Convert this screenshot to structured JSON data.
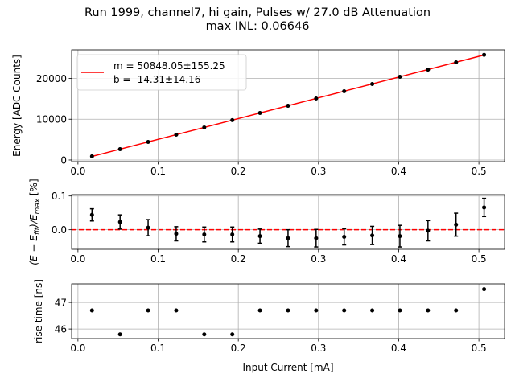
{
  "title": {
    "line1": "Run 1999, channel7, hi gain, Pulses w/ 27.0 dB Attenuation",
    "line2": "max INL: 0.06646"
  },
  "chart_data": [
    {
      "type": "scatter",
      "name": "energy-vs-current",
      "x": [
        0.0175,
        0.0525,
        0.0875,
        0.1225,
        0.1575,
        0.1925,
        0.227,
        0.262,
        0.297,
        0.332,
        0.367,
        0.4015,
        0.4365,
        0.4715,
        0.5065
      ],
      "values": [
        900,
        2650,
        4430,
        6200,
        7990,
        9780,
        11520,
        13290,
        15080,
        16840,
        18620,
        20400,
        22150,
        23940,
        25780
      ],
      "ylabel": "Energy [ADC Counts]",
      "xlim": [
        -0.0079,
        0.532
      ],
      "ylim": [
        -400,
        27000
      ],
      "xticks": [
        "0.0",
        "0.1",
        "0.2",
        "0.3",
        "0.4",
        "0.5"
      ],
      "xtick_values": [
        0,
        0.1,
        0.2,
        0.3,
        0.4,
        0.5
      ],
      "yticks": [
        "0",
        "10000",
        "20000"
      ],
      "ytick_values": [
        0,
        10000,
        20000
      ],
      "fit": {
        "x_start": 0.0175,
        "x_end": 0.5065,
        "m": 50848.05,
        "b": -14.31,
        "color": "#ff0000"
      },
      "legend": {
        "m_text": "m = 50848.05±155.25",
        "b_text": "b = -14.31±14.16",
        "position": "upper-left"
      },
      "grid": true
    },
    {
      "type": "scatter",
      "name": "residuals",
      "x": [
        0.0175,
        0.0525,
        0.0875,
        0.1225,
        0.1575,
        0.1925,
        0.227,
        0.262,
        0.297,
        0.332,
        0.367,
        0.4015,
        0.4365,
        0.4715,
        0.5065
      ],
      "values": [
        0.044,
        0.023,
        0.006,
        -0.012,
        -0.014,
        -0.014,
        -0.019,
        -0.025,
        -0.025,
        -0.021,
        -0.017,
        -0.019,
        -0.003,
        0.015,
        0.066
      ],
      "errors": [
        0.018,
        0.021,
        0.024,
        0.021,
        0.022,
        0.022,
        0.021,
        0.025,
        0.026,
        0.024,
        0.027,
        0.032,
        0.03,
        0.034,
        0.027
      ],
      "ylabel": "(E - E_fit)/E_max [%]",
      "xlim": [
        -0.0079,
        0.532
      ],
      "ylim": [
        -0.058,
        0.104
      ],
      "yticks": [
        "0.0",
        "0.1"
      ],
      "ytick_values": [
        0,
        0.1
      ],
      "xticks": [
        "0.0",
        "0.1",
        "0.2",
        "0.3",
        "0.4",
        "0.5"
      ],
      "xtick_values": [
        0,
        0.1,
        0.2,
        0.3,
        0.4,
        0.5
      ],
      "zero_line_color": "#ff0000",
      "grid": true
    },
    {
      "type": "scatter",
      "name": "rise-time",
      "x": [
        0.0175,
        0.0525,
        0.0875,
        0.1225,
        0.1575,
        0.1925,
        0.227,
        0.262,
        0.297,
        0.332,
        0.367,
        0.4015,
        0.4365,
        0.4715,
        0.5065
      ],
      "values": [
        46.7,
        45.8,
        46.7,
        46.7,
        45.8,
        45.8,
        46.7,
        46.7,
        46.7,
        46.7,
        46.7,
        46.7,
        46.7,
        46.7,
        47.5
      ],
      "ylabel": "rise time [ns]",
      "xlabel": "Input Current [mA]",
      "xlim": [
        -0.0079,
        0.532
      ],
      "ylim": [
        45.64,
        47.7
      ],
      "yticks": [
        "46",
        "47"
      ],
      "ytick_values": [
        46,
        47
      ],
      "xticks": [
        "0.0",
        "0.1",
        "0.2",
        "0.3",
        "0.4",
        "0.5"
      ],
      "xtick_values": [
        0,
        0.1,
        0.2,
        0.3,
        0.4,
        0.5
      ],
      "grid": true
    }
  ]
}
